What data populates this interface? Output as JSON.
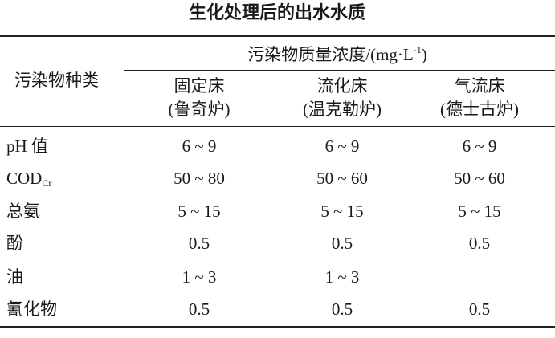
{
  "title": "生化处理后的出水水质",
  "table": {
    "row_header": "污染物种类",
    "group_header": {
      "text": "污染物质量浓度/(mg·L",
      "sup": "-1",
      "close": ")"
    },
    "columns": [
      [
        "固定床",
        "(鲁奇炉)"
      ],
      [
        "流化床",
        "(温克勒炉)"
      ],
      [
        "气流床",
        "(德士古炉)"
      ]
    ],
    "rows": [
      {
        "label": {
          "main": "pH 值"
        },
        "values": [
          "6 ~ 9",
          "6 ~ 9",
          "6 ~ 9"
        ]
      },
      {
        "label": {
          "main": "COD",
          "sub": "Cr"
        },
        "values": [
          "50 ~ 80",
          "50 ~ 60",
          "50 ~ 60"
        ]
      },
      {
        "label": {
          "main": "总氨"
        },
        "values": [
          "5 ~ 15",
          "5 ~ 15",
          "5 ~ 15"
        ]
      },
      {
        "label": {
          "main": "酚"
        },
        "values": [
          "0.5",
          "0.5",
          "0.5"
        ]
      },
      {
        "label": {
          "main": "油"
        },
        "values": [
          "1 ~ 3",
          "1 ~ 3",
          null
        ]
      },
      {
        "label": {
          "main": "氰化物"
        },
        "values": [
          "0.5",
          "0.5",
          "0.5"
        ]
      }
    ]
  }
}
